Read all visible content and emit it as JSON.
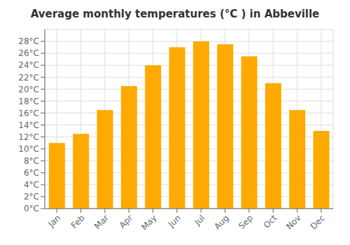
{
  "chart_data": {
    "type": "bar",
    "title": "Average monthly temperatures (°C ) in Abbeville",
    "categories": [
      "Jan",
      "Feb",
      "Mar",
      "Apr",
      "May",
      "Jun",
      "Jul",
      "Aug",
      "Sep",
      "Oct",
      "Nov",
      "Dec"
    ],
    "values": [
      11,
      12.5,
      16.5,
      20.5,
      24,
      27,
      28,
      27.5,
      25.5,
      21,
      16.5,
      13
    ],
    "color": "#FFAA00",
    "ylim": [
      0,
      30
    ],
    "yticks": [
      {
        "value": 0,
        "label": "0°C"
      },
      {
        "value": 2,
        "label": "2°C"
      },
      {
        "value": 4,
        "label": "4°C"
      },
      {
        "value": 6,
        "label": "6°C"
      },
      {
        "value": 8,
        "label": "8°C"
      },
      {
        "value": 10,
        "label": "10°C"
      },
      {
        "value": 12,
        "label": "12°C"
      },
      {
        "value": 14,
        "label": "14°C"
      },
      {
        "value": 16,
        "label": "16°C"
      },
      {
        "value": 18,
        "label": "18°C"
      },
      {
        "value": 20,
        "label": "20°C"
      },
      {
        "value": 22,
        "label": "22°C"
      },
      {
        "value": 24,
        "label": "24°C"
      },
      {
        "value": 26,
        "label": "26°C"
      },
      {
        "value": 28,
        "label": "28°C"
      }
    ],
    "grid": true
  }
}
